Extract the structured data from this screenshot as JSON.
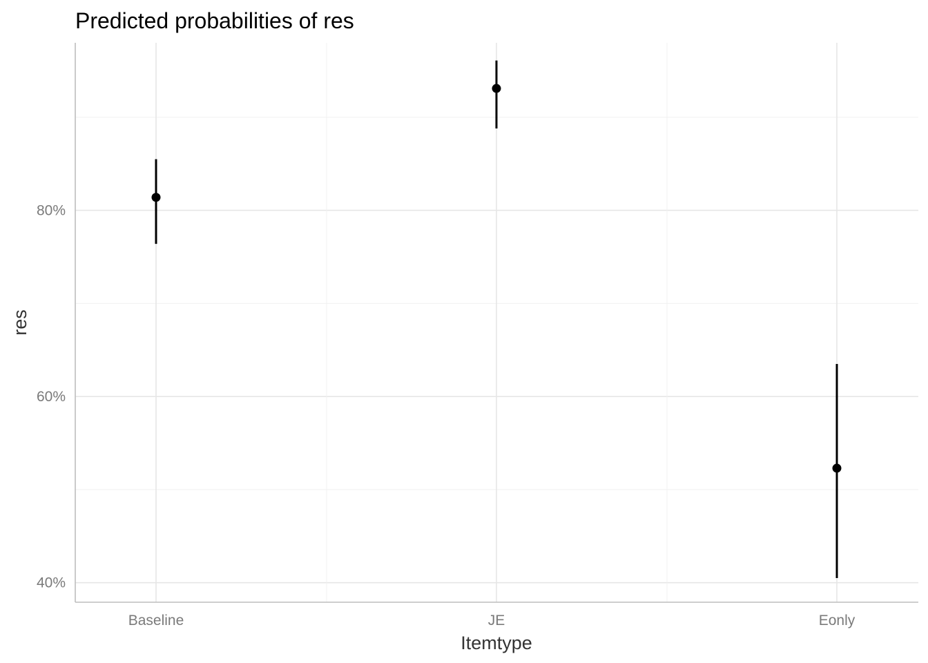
{
  "chart_data": {
    "type": "errorbar",
    "title": "Predicted probabilities of res",
    "xlabel": "Itemtype",
    "ylabel": "res",
    "categories": [
      "Baseline",
      "JE",
      "Eonly"
    ],
    "estimates": [
      0.814,
      0.931,
      0.523
    ],
    "lower": [
      0.764,
      0.888,
      0.405
    ],
    "upper": [
      0.855,
      0.961,
      0.635
    ],
    "ylim": [
      0.379,
      0.98
    ],
    "yticks": [
      0.4,
      0.6,
      0.8
    ],
    "ytick_labels": [
      "40%",
      "60%",
      "80%"
    ],
    "y_minor_ticks": [
      0.5,
      0.7,
      0.9
    ],
    "grid": true,
    "point_color": "#000000",
    "errorbar_color": "#000000"
  }
}
